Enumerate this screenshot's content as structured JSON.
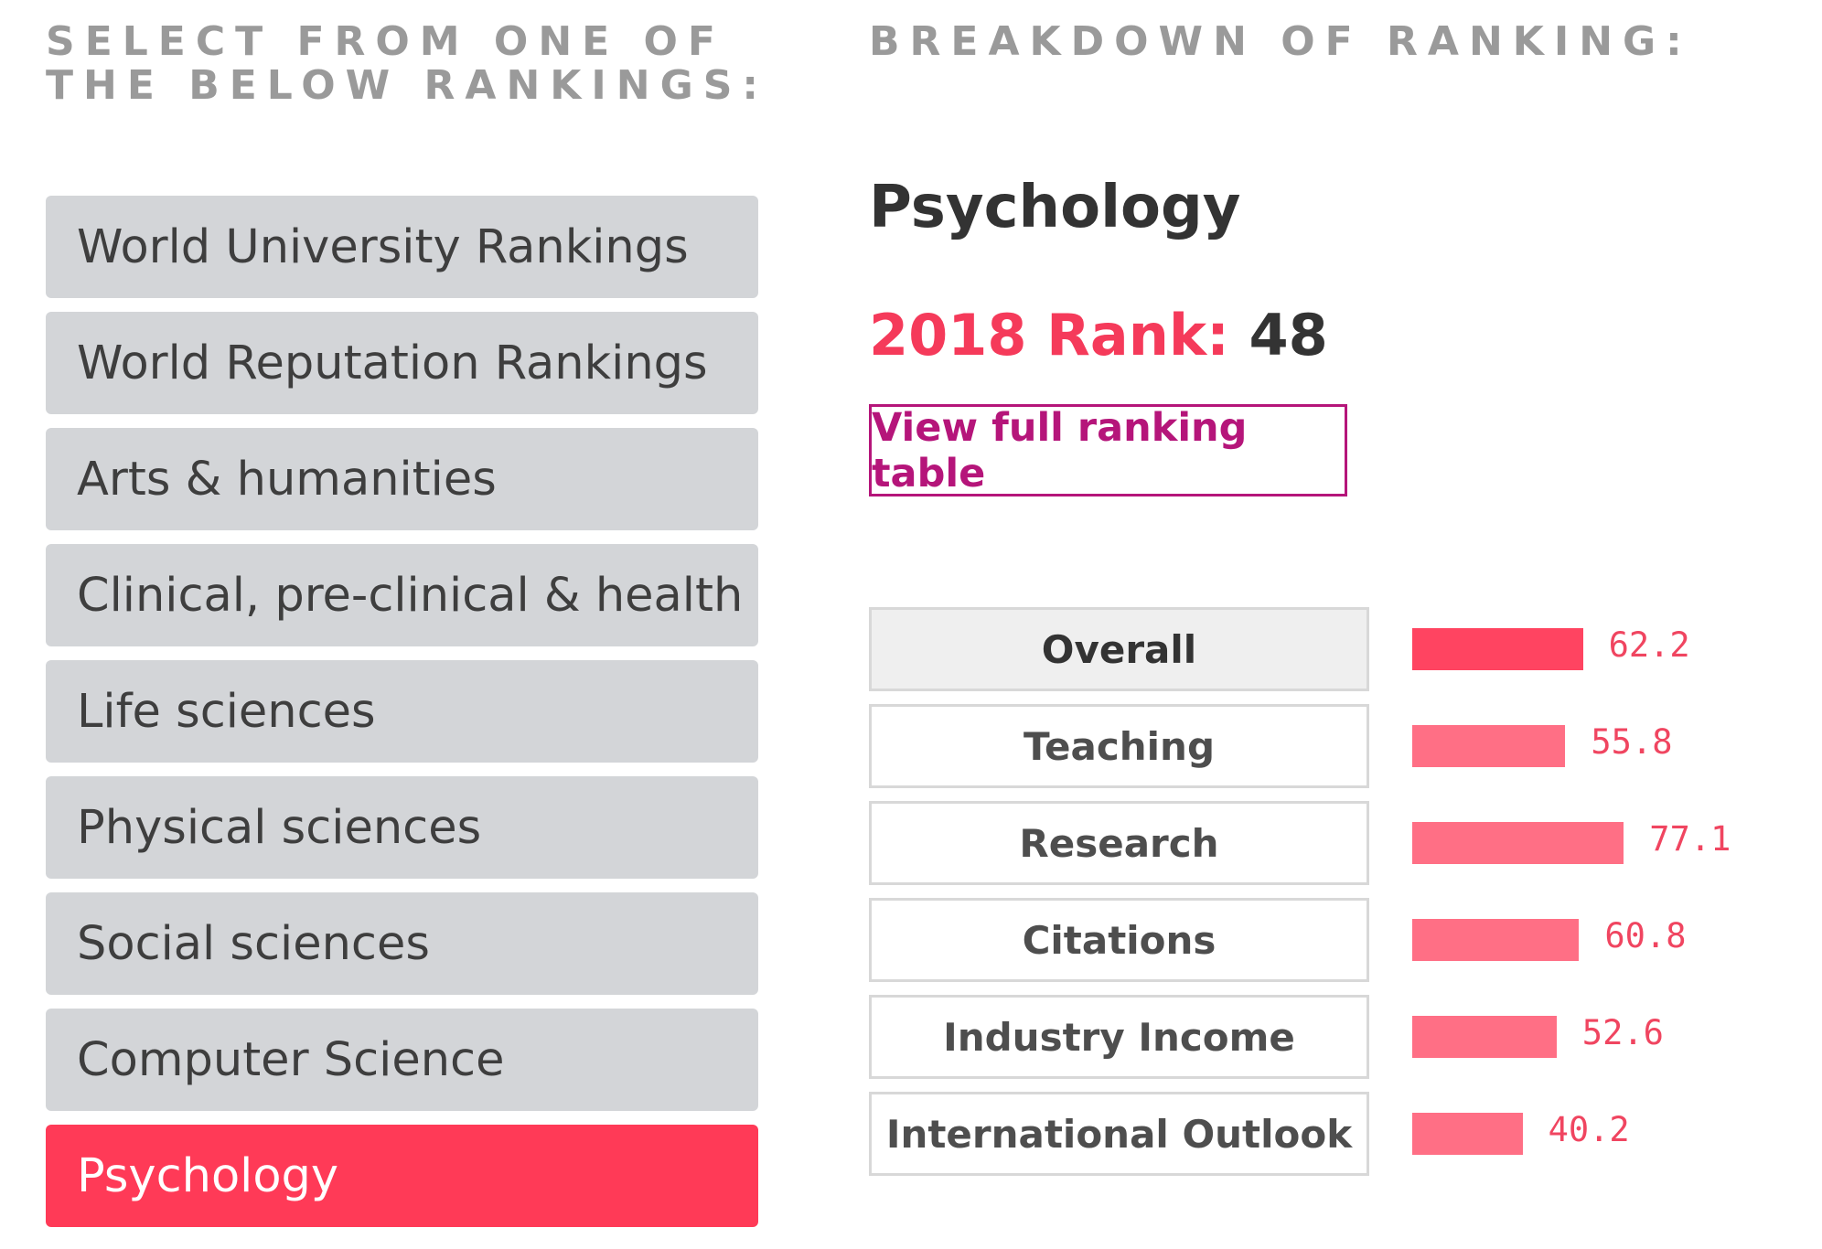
{
  "headings": {
    "left": "SELECT FROM ONE OF THE BELOW RANKINGS:",
    "right": "BREAKDOWN OF RANKING:"
  },
  "rankings": [
    {
      "label": "World University Rankings",
      "active": false
    },
    {
      "label": "World Reputation Rankings",
      "active": false
    },
    {
      "label": "Arts & humanities",
      "active": false
    },
    {
      "label": "Clinical, pre-clinical & health",
      "active": false
    },
    {
      "label": "Life sciences",
      "active": false
    },
    {
      "label": "Physical sciences",
      "active": false
    },
    {
      "label": "Social sciences",
      "active": false
    },
    {
      "label": "Computer Science",
      "active": false
    },
    {
      "label": "Psychology",
      "active": true
    }
  ],
  "breakdown": {
    "title": "Psychology",
    "rank_label": "2018 Rank:",
    "rank_value": "48",
    "view_button": "View full ranking table"
  },
  "metrics": [
    {
      "label": "Overall",
      "value": "62.2",
      "selected": true
    },
    {
      "label": "Teaching",
      "value": "55.8",
      "selected": false
    },
    {
      "label": "Research",
      "value": "77.1",
      "selected": false
    },
    {
      "label": "Citations",
      "value": "60.8",
      "selected": false
    },
    {
      "label": "Industry Income",
      "value": "52.6",
      "selected": false
    },
    {
      "label": "International Outlook",
      "value": "40.2",
      "selected": false
    }
  ],
  "colors": {
    "accent": "#ff3a57",
    "bar": "#ff6f85",
    "bar_selected": "#ff4461",
    "button_border": "#b5157a",
    "inactive_item": "#d3d5d8"
  }
}
